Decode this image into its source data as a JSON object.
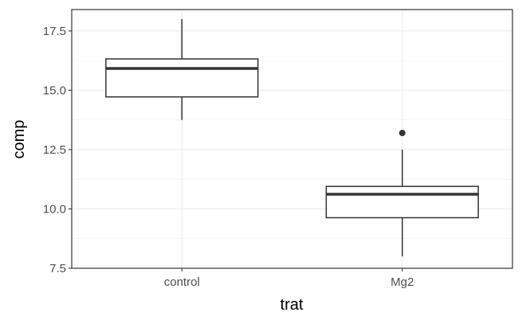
{
  "chart_data": {
    "type": "box",
    "xlabel": "trat",
    "ylabel": "comp",
    "ylim": [
      7.5,
      18.4
    ],
    "y_ticks": [
      "7.5",
      "10.0",
      "12.5",
      "15.0",
      "17.5"
    ],
    "y_tick_values": [
      7.5,
      10.0,
      12.5,
      15.0,
      17.5
    ],
    "categories": [
      "control",
      "Mg2"
    ],
    "boxes": [
      {
        "category": "control",
        "whisker_low": 13.75,
        "q1": 14.72,
        "median": 15.92,
        "q3": 16.32,
        "whisker_high": 18.0,
        "outliers": []
      },
      {
        "category": "Mg2",
        "whisker_low": 8.0,
        "q1": 9.63,
        "median": 10.62,
        "q3": 10.95,
        "whisker_high": 12.5,
        "outliers": [
          13.2
        ]
      }
    ],
    "grid": true,
    "theme": "bw"
  }
}
